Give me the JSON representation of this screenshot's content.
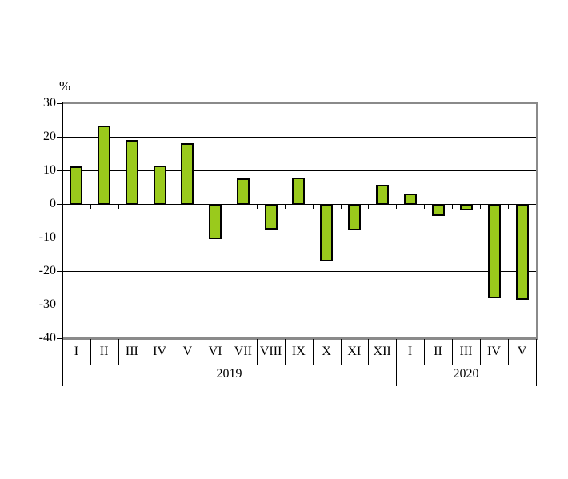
{
  "chart_data": {
    "type": "bar",
    "title": "",
    "xlabel": "",
    "ylabel": "%",
    "ylim": [
      -40,
      30
    ],
    "yticks": [
      30,
      20,
      10,
      0,
      -10,
      -20,
      -30,
      -40
    ],
    "grid": "horizontal",
    "legend": "none",
    "bar_color": "#9ACA1C",
    "bar_border_color": "#000000",
    "frame_color": "#8a8a8a",
    "groups": [
      {
        "year": "2019",
        "categories": [
          "I",
          "II",
          "III",
          "IV",
          "V",
          "VI",
          "VII",
          "VIII",
          "IX",
          "X",
          "XI",
          "XII"
        ],
        "values": [
          11.3,
          23.4,
          19.0,
          11.5,
          18.0,
          -10.2,
          7.6,
          -7.3,
          7.8,
          -17.0,
          -7.5,
          5.7
        ]
      },
      {
        "year": "2020",
        "categories": [
          "I",
          "II",
          "III",
          "IV",
          "V"
        ],
        "values": [
          3.0,
          -3.3,
          -1.6,
          -27.8,
          -28.3
        ]
      }
    ]
  }
}
